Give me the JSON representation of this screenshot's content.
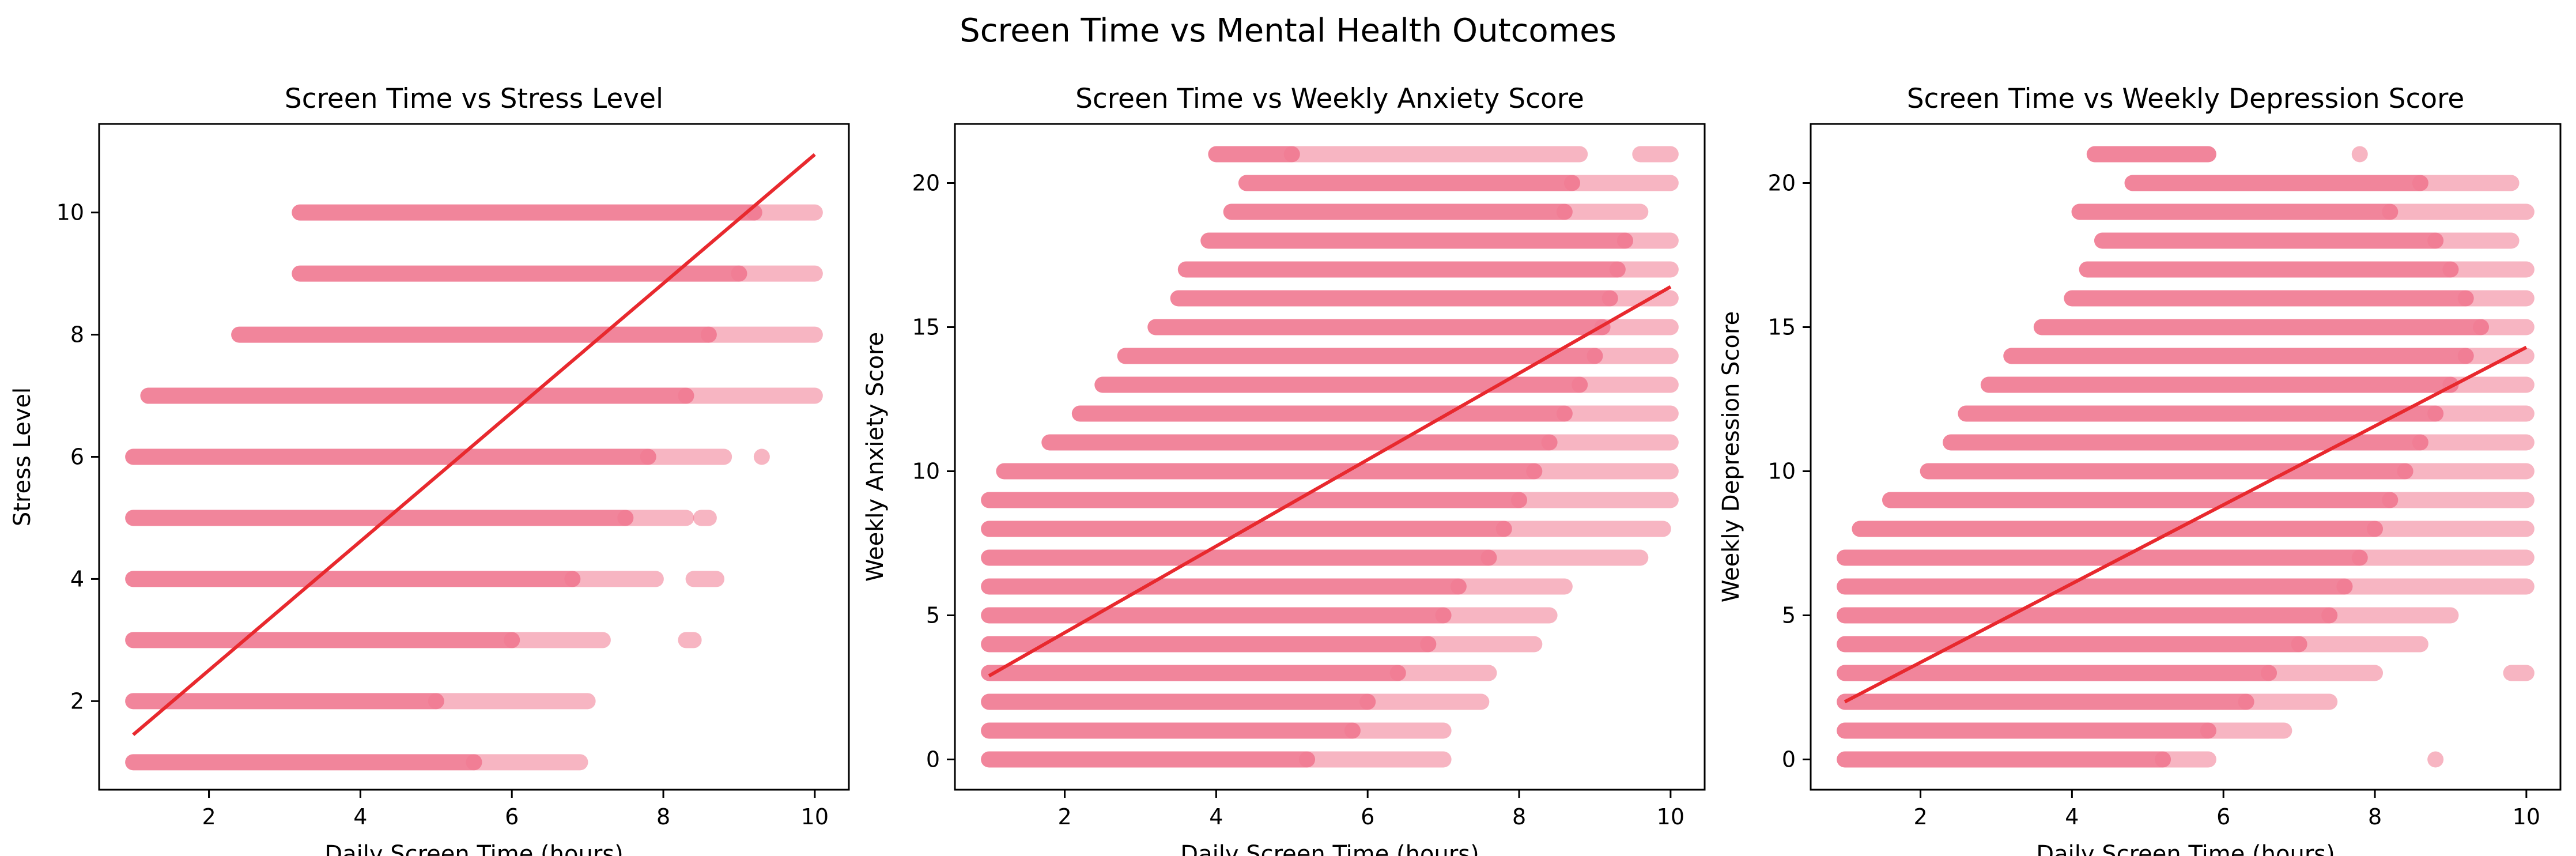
{
  "figure": {
    "title": "Screen Time vs Mental Health Outcomes"
  },
  "colors": {
    "points": "#f07890",
    "trend": "#e8292e",
    "axes": "#000000"
  },
  "chart_data": [
    {
      "type": "scatter",
      "title": "Screen Time vs Stress Level",
      "xlabel": "Daily Screen Time (hours)",
      "ylabel": "Stress Level",
      "xlim": [
        0.55,
        10.45
      ],
      "ylim": [
        0.55,
        11.45
      ],
      "xticks": [
        2,
        4,
        6,
        8,
        10
      ],
      "yticks": [
        2,
        4,
        6,
        8,
        10
      ],
      "grid": false,
      "trend_line": {
        "x": [
          1.0,
          10.0
        ],
        "y": [
          1.45,
          10.95
        ]
      },
      "rows": [
        {
          "y": 1,
          "segments": [
            [
              1.0,
              5.5
            ],
            [
              5.5,
              6.9
            ]
          ]
        },
        {
          "y": 2,
          "segments": [
            [
              1.0,
              5.0
            ],
            [
              5.0,
              7.0
            ]
          ]
        },
        {
          "y": 3,
          "segments": [
            [
              1.0,
              6.0
            ],
            [
              6.0,
              7.2
            ],
            [
              8.3,
              8.4
            ]
          ]
        },
        {
          "y": 4,
          "segments": [
            [
              1.0,
              6.8
            ],
            [
              6.8,
              7.9
            ],
            [
              8.4,
              8.7
            ]
          ]
        },
        {
          "y": 5,
          "segments": [
            [
              1.0,
              7.5
            ],
            [
              7.5,
              8.3
            ],
            [
              8.5,
              8.6
            ]
          ]
        },
        {
          "y": 6,
          "segments": [
            [
              1.0,
              7.8
            ],
            [
              7.8,
              8.8
            ],
            [
              9.3,
              9.3
            ]
          ]
        },
        {
          "y": 7,
          "segments": [
            [
              1.2,
              8.3
            ],
            [
              8.3,
              10.0
            ]
          ]
        },
        {
          "y": 8,
          "segments": [
            [
              2.4,
              8.6
            ],
            [
              8.6,
              10.0
            ]
          ]
        },
        {
          "y": 9,
          "segments": [
            [
              3.2,
              9.0
            ],
            [
              9.0,
              10.0
            ]
          ]
        },
        {
          "y": 10,
          "segments": [
            [
              3.2,
              9.2
            ],
            [
              9.2,
              10.0
            ]
          ]
        }
      ]
    },
    {
      "type": "scatter",
      "title": "Screen Time vs Weekly Anxiety Score",
      "xlabel": "Daily Screen Time (hours)",
      "ylabel": "Weekly Anxiety Score",
      "xlim": [
        0.55,
        10.45
      ],
      "ylim": [
        -1.05,
        22.05
      ],
      "xticks": [
        2,
        4,
        6,
        8,
        10
      ],
      "yticks": [
        0,
        5,
        10,
        15,
        20
      ],
      "grid": false,
      "trend_line": {
        "x": [
          1.0,
          10.0
        ],
        "y": [
          2.9,
          16.4
        ]
      },
      "rows": [
        {
          "y": 0,
          "segments": [
            [
              1.0,
              5.2
            ],
            [
              5.2,
              7.0
            ]
          ]
        },
        {
          "y": 1,
          "segments": [
            [
              1.0,
              5.8
            ],
            [
              5.8,
              7.0
            ]
          ]
        },
        {
          "y": 2,
          "segments": [
            [
              1.0,
              6.0
            ],
            [
              6.0,
              7.5
            ]
          ]
        },
        {
          "y": 3,
          "segments": [
            [
              1.0,
              6.4
            ],
            [
              6.4,
              7.6
            ]
          ]
        },
        {
          "y": 4,
          "segments": [
            [
              1.0,
              6.8
            ],
            [
              6.8,
              8.2
            ]
          ]
        },
        {
          "y": 5,
          "segments": [
            [
              1.0,
              7.0
            ],
            [
              7.0,
              8.4
            ]
          ]
        },
        {
          "y": 6,
          "segments": [
            [
              1.0,
              7.2
            ],
            [
              7.2,
              8.6
            ]
          ]
        },
        {
          "y": 7,
          "segments": [
            [
              1.0,
              7.6
            ],
            [
              7.6,
              9.6
            ]
          ]
        },
        {
          "y": 8,
          "segments": [
            [
              1.0,
              7.8
            ],
            [
              7.8,
              9.9
            ]
          ]
        },
        {
          "y": 9,
          "segments": [
            [
              1.0,
              8.0
            ],
            [
              8.0,
              10.0
            ]
          ]
        },
        {
          "y": 10,
          "segments": [
            [
              1.2,
              8.2
            ],
            [
              8.2,
              10.0
            ]
          ]
        },
        {
          "y": 11,
          "segments": [
            [
              1.8,
              8.4
            ],
            [
              8.4,
              10.0
            ]
          ]
        },
        {
          "y": 12,
          "segments": [
            [
              2.2,
              8.6
            ],
            [
              8.6,
              10.0
            ]
          ]
        },
        {
          "y": 13,
          "segments": [
            [
              2.5,
              8.8
            ],
            [
              8.8,
              10.0
            ]
          ]
        },
        {
          "y": 14,
          "segments": [
            [
              2.8,
              9.0
            ],
            [
              9.0,
              10.0
            ]
          ]
        },
        {
          "y": 15,
          "segments": [
            [
              3.2,
              9.1
            ],
            [
              9.1,
              10.0
            ]
          ]
        },
        {
          "y": 16,
          "segments": [
            [
              3.5,
              9.2
            ],
            [
              9.2,
              10.0
            ]
          ]
        },
        {
          "y": 17,
          "segments": [
            [
              3.6,
              9.3
            ],
            [
              9.3,
              10.0
            ]
          ]
        },
        {
          "y": 18,
          "segments": [
            [
              3.9,
              9.4
            ],
            [
              9.4,
              10.0
            ]
          ]
        },
        {
          "y": 19,
          "segments": [
            [
              4.2,
              8.6
            ],
            [
              8.6,
              9.6
            ]
          ]
        },
        {
          "y": 20,
          "segments": [
            [
              4.4,
              8.7
            ],
            [
              8.7,
              10.0
            ]
          ]
        },
        {
          "y": 21,
          "segments": [
            [
              4.0,
              5.0
            ],
            [
              5.0,
              8.8
            ],
            [
              9.6,
              10.0
            ]
          ]
        }
      ]
    },
    {
      "type": "scatter",
      "title": "Screen Time vs Weekly Depression Score",
      "xlabel": "Daily Screen Time (hours)",
      "ylabel": "Weekly Depression Score",
      "xlim": [
        0.55,
        10.45
      ],
      "ylim": [
        -1.05,
        22.05
      ],
      "xticks": [
        2,
        4,
        6,
        8,
        10
      ],
      "yticks": [
        0,
        5,
        10,
        15,
        20
      ],
      "grid": false,
      "trend_line": {
        "x": [
          1.0,
          10.0
        ],
        "y": [
          2.0,
          14.3
        ]
      },
      "rows": [
        {
          "y": 0,
          "segments": [
            [
              1.0,
              5.2
            ],
            [
              5.2,
              5.8
            ],
            [
              8.8,
              8.8
            ]
          ]
        },
        {
          "y": 1,
          "segments": [
            [
              1.0,
              5.8
            ],
            [
              5.8,
              6.8
            ]
          ]
        },
        {
          "y": 2,
          "segments": [
            [
              1.0,
              6.3
            ],
            [
              6.3,
              7.4
            ]
          ]
        },
        {
          "y": 3,
          "segments": [
            [
              1.0,
              6.6
            ],
            [
              6.6,
              8.0
            ],
            [
              9.8,
              10.0
            ]
          ]
        },
        {
          "y": 4,
          "segments": [
            [
              1.0,
              7.0
            ],
            [
              7.0,
              8.6
            ]
          ]
        },
        {
          "y": 5,
          "segments": [
            [
              1.0,
              7.4
            ],
            [
              7.4,
              9.0
            ]
          ]
        },
        {
          "y": 6,
          "segments": [
            [
              1.0,
              7.6
            ],
            [
              7.6,
              10.0
            ]
          ]
        },
        {
          "y": 7,
          "segments": [
            [
              1.0,
              7.8
            ],
            [
              7.8,
              10.0
            ]
          ]
        },
        {
          "y": 8,
          "segments": [
            [
              1.2,
              8.0
            ],
            [
              8.0,
              10.0
            ]
          ]
        },
        {
          "y": 9,
          "segments": [
            [
              1.6,
              8.2
            ],
            [
              8.2,
              10.0
            ]
          ]
        },
        {
          "y": 10,
          "segments": [
            [
              2.1,
              8.4
            ],
            [
              8.4,
              10.0
            ]
          ]
        },
        {
          "y": 11,
          "segments": [
            [
              2.4,
              8.6
            ],
            [
              8.6,
              10.0
            ]
          ]
        },
        {
          "y": 12,
          "segments": [
            [
              2.6,
              8.8
            ],
            [
              8.8,
              10.0
            ]
          ]
        },
        {
          "y": 13,
          "segments": [
            [
              2.9,
              9.0
            ],
            [
              9.0,
              10.0
            ]
          ]
        },
        {
          "y": 14,
          "segments": [
            [
              3.2,
              9.2
            ],
            [
              9.2,
              10.0
            ]
          ]
        },
        {
          "y": 15,
          "segments": [
            [
              3.6,
              9.4
            ],
            [
              9.4,
              10.0
            ]
          ]
        },
        {
          "y": 16,
          "segments": [
            [
              4.0,
              9.2
            ],
            [
              9.2,
              10.0
            ]
          ]
        },
        {
          "y": 17,
          "segments": [
            [
              4.2,
              9.0
            ],
            [
              9.0,
              10.0
            ]
          ]
        },
        {
          "y": 18,
          "segments": [
            [
              4.4,
              8.8
            ],
            [
              8.8,
              9.8
            ]
          ]
        },
        {
          "y": 19,
          "segments": [
            [
              4.1,
              8.2
            ],
            [
              8.2,
              10.0
            ]
          ]
        },
        {
          "y": 20,
          "segments": [
            [
              4.8,
              8.6
            ],
            [
              8.6,
              9.8
            ]
          ]
        },
        {
          "y": 21,
          "segments": [
            [
              4.3,
              5.8
            ],
            [
              7.8,
              7.8
            ]
          ]
        }
      ]
    }
  ]
}
